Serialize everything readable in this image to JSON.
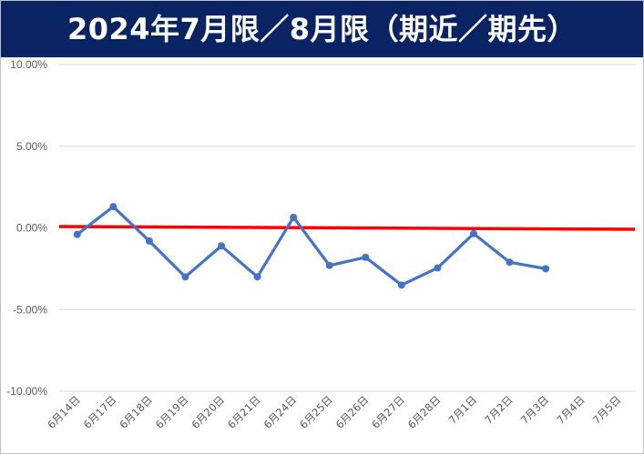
{
  "chart_data": {
    "type": "line",
    "title": "2024年7月限／8月限（期近／期先）",
    "categories": [
      "6月14日",
      "6月17日",
      "6月18日",
      "6月19日",
      "6月20日",
      "6月21日",
      "6月24日",
      "6月25日",
      "6月26日",
      "6月27日",
      "6月28日",
      "7月1日",
      "7月2日",
      "7月3日",
      "7月4日",
      "7月5日"
    ],
    "series": [
      {
        "values": [
          -0.4,
          1.3,
          -0.8,
          -3.0,
          -1.1,
          -3.0,
          0.65,
          -2.3,
          -1.8,
          -3.5,
          -2.45,
          -0.35,
          -2.1,
          -2.5,
          null,
          null
        ]
      }
    ],
    "reference_line": {
      "value": 0.0
    },
    "yticks": [
      "10.00%",
      "5.00%",
      "0.00%",
      "-5.00%",
      "-10.00%"
    ],
    "ylim": [
      -10,
      10
    ],
    "grid": true,
    "colors": {
      "title_bg": "#0a2463",
      "series": "#4472c4",
      "reference": "#ff0000",
      "grid": "#d9d9d9"
    }
  }
}
